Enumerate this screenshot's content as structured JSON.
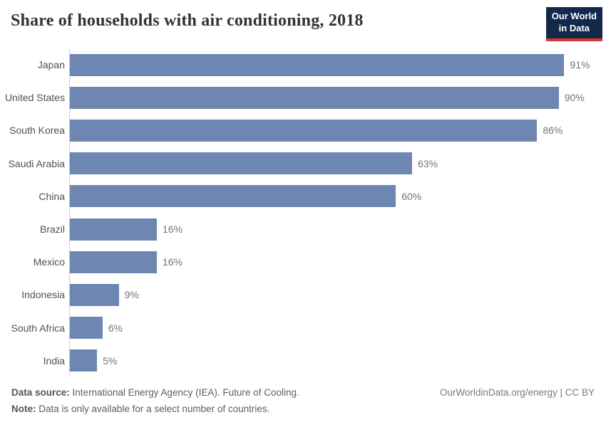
{
  "header": {
    "title": "Share of households with air conditioning, 2018",
    "logo": {
      "line1": "Our World",
      "line2": "in Data"
    }
  },
  "chart_data": {
    "type": "bar",
    "orientation": "horizontal",
    "title": "Share of households with air conditioning, 2018",
    "categories": [
      "Japan",
      "United States",
      "South Korea",
      "Saudi Arabia",
      "China",
      "Brazil",
      "Mexico",
      "Indonesia",
      "South Africa",
      "India"
    ],
    "values": [
      91,
      90,
      86,
      63,
      60,
      16,
      16,
      9,
      6,
      5
    ],
    "value_labels": [
      "91%",
      "90%",
      "86%",
      "63%",
      "60%",
      "16%",
      "16%",
      "9%",
      "6%",
      "5%"
    ],
    "value_suffix": "%",
    "xlim": [
      0,
      100
    ],
    "grid": false,
    "legend": "none",
    "bar_color": "#6d87b2"
  },
  "footer": {
    "source_label": "Data source:",
    "source_text": "International Energy Agency (IEA). Future of Cooling.",
    "note_label": "Note:",
    "note_text": "Data is only available for a select number of countries.",
    "credit": "OurWorldinData.org/energy | CC BY"
  },
  "colors": {
    "bar": "#6d87b2",
    "axis_line": "#cccccc",
    "logo_background": "#12294b",
    "logo_accent": "#d8352c"
  }
}
